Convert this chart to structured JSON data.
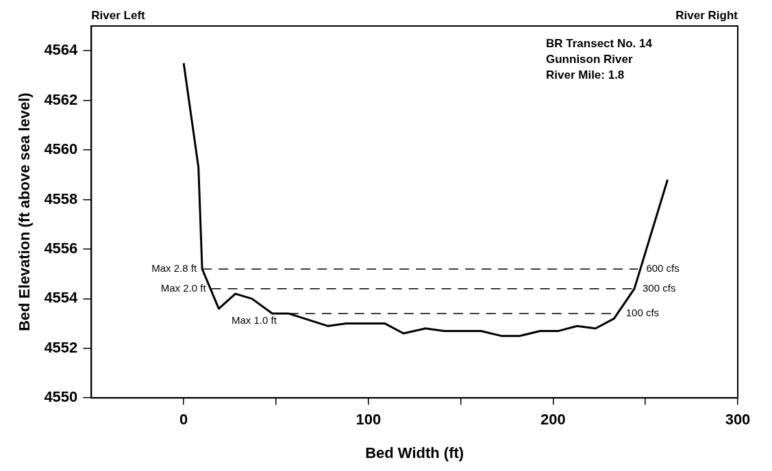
{
  "chart_data": {
    "type": "line",
    "xlabel": "Bed Width (ft)",
    "ylabel": "Bed Elevation (ft above sea level)",
    "xlim": [
      -50,
      300
    ],
    "xticks": [
      0,
      {
        "value": 50,
        "label": null
      },
      100,
      {
        "value": 150,
        "label": null
      },
      200,
      {
        "value": 250,
        "label": null
      },
      300
    ],
    "ylim": [
      4550,
      4565
    ],
    "yticks": [
      4550,
      4552,
      4554,
      4556,
      4558,
      4560,
      4562,
      4564
    ],
    "grid": false,
    "legend": false,
    "marker": "none",
    "series": [
      {
        "color": "#000000",
        "line_style": "solid",
        "x": [
          0,
          8,
          10,
          19,
          28,
          37,
          48,
          57,
          78,
          88,
          109,
          119,
          131,
          141,
          161,
          172,
          182,
          193,
          203,
          213,
          223,
          233,
          244,
          262
        ],
        "values": [
          4563.5,
          4559.3,
          4555.2,
          4553.6,
          4554.2,
          4554.0,
          4553.4,
          4553.4,
          4552.9,
          4553.0,
          4553.0,
          4552.6,
          4552.8,
          4552.7,
          4552.7,
          4552.5,
          4552.5,
          4552.7,
          4552.7,
          4552.9,
          4552.8,
          4553.2,
          4554.4,
          4558.8
        ]
      },
      {
        "name": "600 cfs",
        "color": "#000000",
        "line_style": "dashed",
        "x": [
          10,
          246
        ],
        "values": [
          4555.2,
          4555.2
        ]
      },
      {
        "name": "300 cfs",
        "color": "#000000",
        "line_style": "dashed",
        "x": [
          15,
          244
        ],
        "values": [
          4554.4,
          4554.4
        ]
      },
      {
        "name": "100 cfs",
        "color": "#000000",
        "line_style": "dashed",
        "x": [
          57,
          235
        ],
        "values": [
          4553.4,
          4553.4
        ]
      }
    ],
    "annotations": [
      "River Left",
      "River Right",
      "BR Transect No. 14\nGunnison River\nRiver Mile: 1.8",
      {
        "text": "Max 2.8 ft",
        "x": 10,
        "y": 4555.2
      },
      {
        "text": "Max 2.0 ft",
        "x": 15,
        "y": 4554.4
      },
      {
        "text": "Max 1.0 ft",
        "x": 57,
        "y": 4553.4
      }
    ]
  }
}
